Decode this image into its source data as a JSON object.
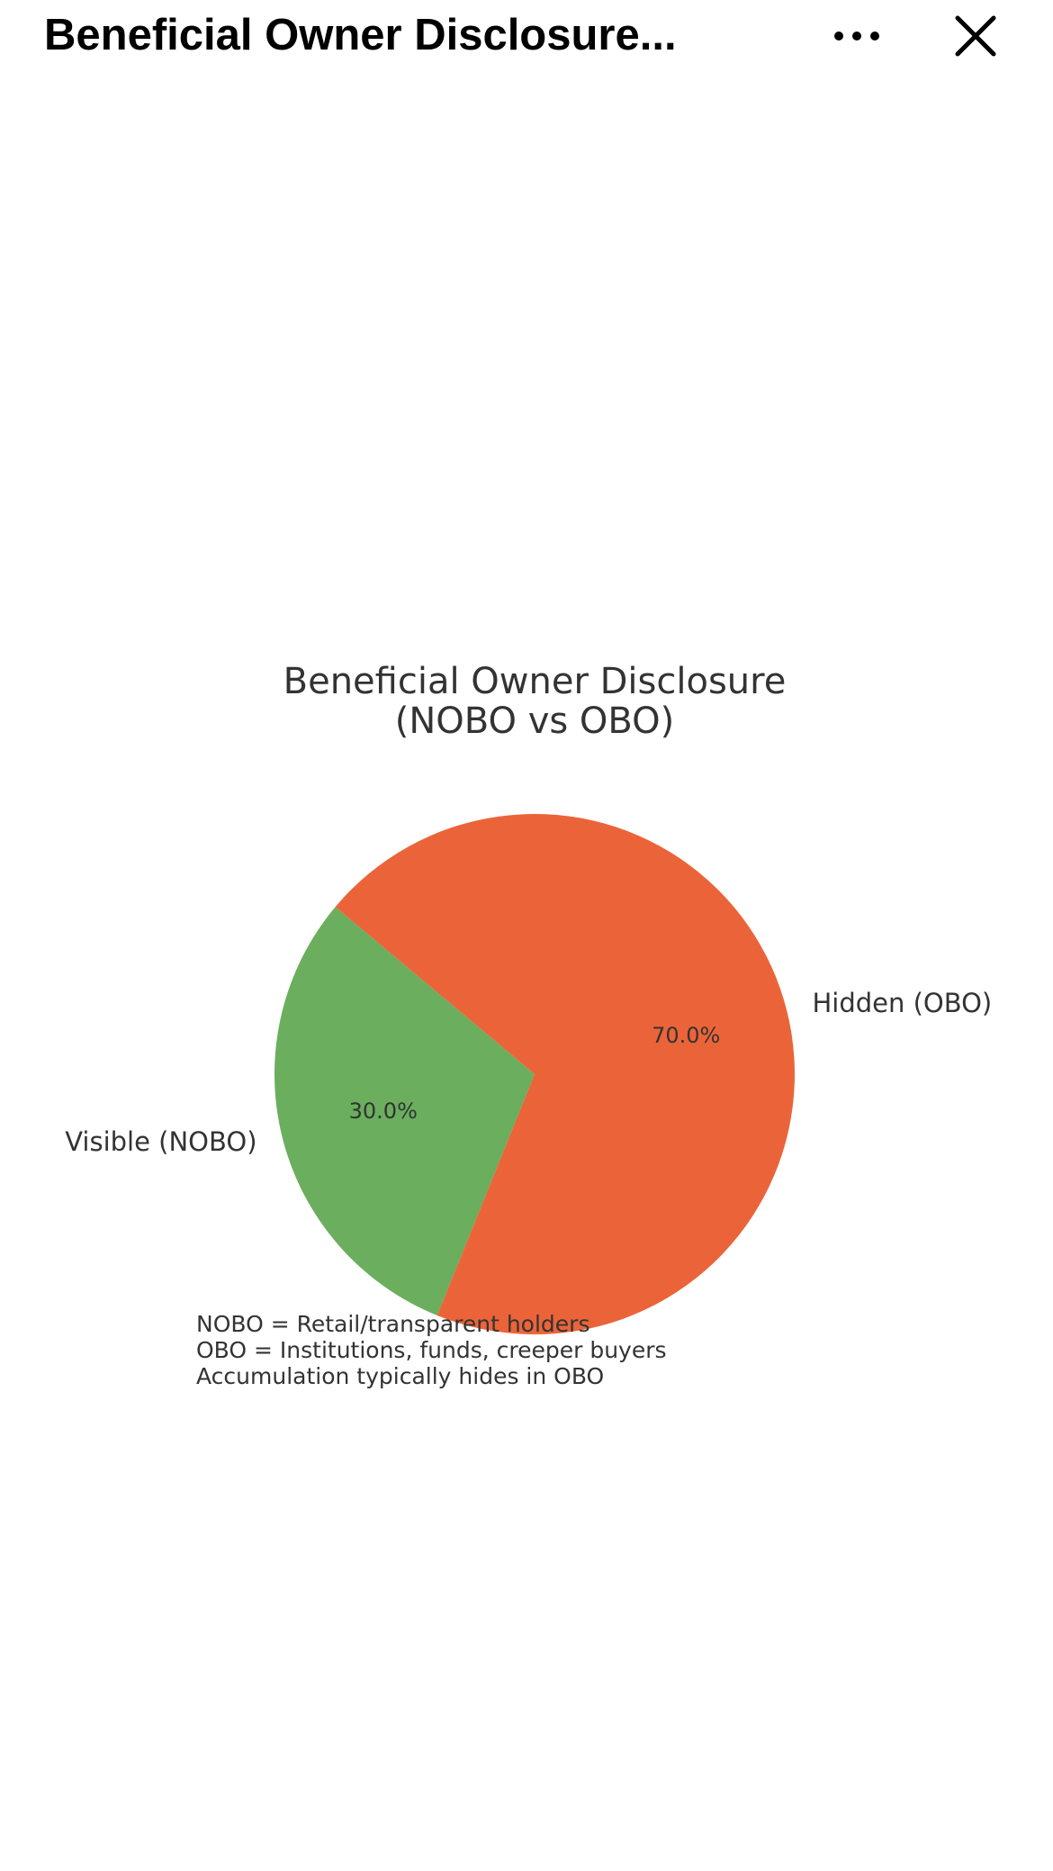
{
  "header": {
    "title": "Beneficial Owner Disclosure..."
  },
  "chart_data": {
    "type": "pie",
    "title": [
      "Beneficial Owner Disclosure",
      "(NOBO vs OBO)"
    ],
    "categories": [
      "Visible (NOBO)",
      "Hidden (OBO)"
    ],
    "values": [
      30,
      70
    ],
    "value_labels": [
      "30.0%",
      "70.0%"
    ],
    "colors": [
      "#6aae5e",
      "#eb6439"
    ],
    "start_angle": 140,
    "notes": [
      "NOBO = Retail/transparent holders",
      "OBO = Institutions, funds, creeper buyers",
      "Accumulation typically hides in OBO"
    ]
  }
}
